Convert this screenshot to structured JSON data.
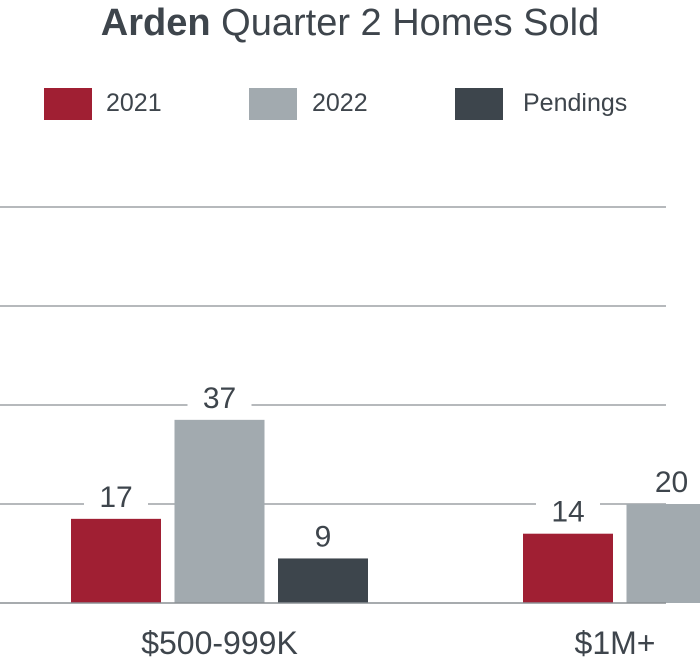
{
  "title": {
    "bold": "Arden",
    "rest": " Quarter 2 Homes Sold"
  },
  "chart_data": {
    "type": "bar",
    "title": "Arden Quarter 2 Homes Sold",
    "categories": [
      "$500-999K",
      "$1M+"
    ],
    "series": [
      {
        "name": "2021",
        "values": [
          17,
          14
        ],
        "color": "#a01f33"
      },
      {
        "name": "2022",
        "values": [
          37,
          20
        ],
        "color": "#a2aaaf"
      },
      {
        "name": "Pendings",
        "values": [
          9,
          null
        ],
        "color": "#3d454c"
      }
    ],
    "ylim": [
      0,
      80
    ],
    "grid": true,
    "legend": "top"
  }
}
